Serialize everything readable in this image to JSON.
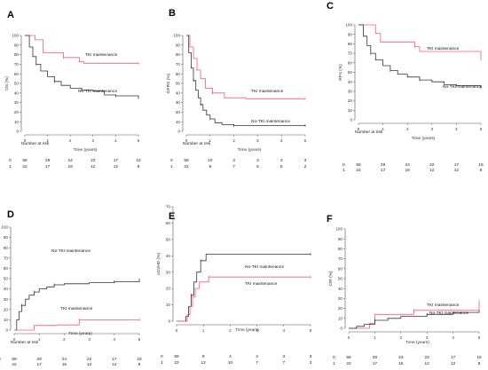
{
  "chart_data": [
    {
      "type": "line",
      "panel": "A",
      "ylabel": "OS (%)",
      "xlabel": "Time (years)",
      "xlim": [
        0,
        5
      ],
      "ylim": [
        0,
        100
      ],
      "xticks": [
        0,
        1,
        2,
        3,
        4,
        5
      ],
      "yticks": [
        0,
        10,
        20,
        30,
        40,
        50,
        60,
        70,
        80,
        90,
        100
      ],
      "series": [
        {
          "name": "TKI maintenance",
          "color": "#ff5a6e",
          "x": [
            0,
            0.45,
            0.8,
            1.7,
            2.4,
            2.6,
            5.0
          ],
          "y": [
            100,
            95.5,
            82,
            77,
            72.5,
            71,
            71
          ]
        },
        {
          "name": "No-TKI maintenance",
          "color": "#333333",
          "x": [
            0,
            0.2,
            0.35,
            0.5,
            0.7,
            1.0,
            1.3,
            1.6,
            2.0,
            2.5,
            3.0,
            3.5,
            4.0,
            5.0
          ],
          "y": [
            100,
            88,
            78,
            70,
            63,
            57,
            52,
            48,
            45,
            43,
            42,
            38,
            37,
            35
          ]
        }
      ],
      "risk_table": {
        "title": "Number at risk",
        "rows": [
          {
            "group": "0",
            "values": [
              "58",
              "29",
              "24",
              "22",
              "17",
              "15"
            ]
          },
          {
            "group": "1",
            "values": [
              "22",
              "17",
              "16",
              "12",
              "12",
              "8"
            ]
          }
        ]
      }
    },
    {
      "type": "line",
      "panel": "B",
      "ylabel": "GFRS (%)",
      "xlabel": "Time (years)",
      "xlim": [
        0,
        5
      ],
      "ylim": [
        0,
        100
      ],
      "xticks": [
        0,
        1,
        2,
        3,
        4,
        5
      ],
      "yticks": [
        0,
        10,
        20,
        30,
        40,
        50,
        60,
        70,
        80,
        90,
        100
      ],
      "series": [
        {
          "name": "TKI maintenance",
          "color": "#ff5a6e",
          "x": [
            0,
            0.15,
            0.3,
            0.45,
            0.6,
            0.8,
            1.1,
            1.6,
            2.5,
            5.0
          ],
          "y": [
            100,
            88,
            76,
            64,
            55,
            45,
            40,
            35,
            34,
            34
          ]
        },
        {
          "name": "No-TKI maintenance",
          "color": "#333333",
          "x": [
            0,
            0.1,
            0.2,
            0.3,
            0.4,
            0.5,
            0.6,
            0.7,
            0.85,
            1.0,
            1.2,
            1.5,
            2.0,
            3.0,
            5.0
          ],
          "y": [
            100,
            82,
            66,
            53,
            43,
            35,
            28,
            22,
            17,
            13,
            9,
            7,
            6,
            6,
            6
          ]
        }
      ],
      "risk_table": {
        "title": "Number at risk",
        "rows": [
          {
            "group": "0",
            "values": [
              "58",
              "10",
              "3",
              "3",
              "3",
              "3"
            ]
          },
          {
            "group": "1",
            "values": [
              "22",
              "9",
              "7",
              "5",
              "5",
              "2"
            ]
          }
        ]
      }
    },
    {
      "type": "line",
      "panel": "C",
      "ylabel": "RFS (%)",
      "xlabel": "Time (years)",
      "xlim": [
        0,
        5
      ],
      "ylim": [
        0,
        100
      ],
      "xticks": [
        0,
        1,
        2,
        3,
        4,
        5
      ],
      "yticks": [
        0,
        10,
        20,
        30,
        40,
        50,
        60,
        70,
        80,
        90,
        100
      ],
      "series": [
        {
          "name": "TKI maintenance",
          "color": "#ff5a6e",
          "x": [
            0,
            0.7,
            0.9,
            2.3,
            2.5,
            4.9,
            5.0
          ],
          "y": [
            100,
            91,
            82,
            77,
            72,
            72,
            64
          ]
        },
        {
          "name": "No-TKI maintenance",
          "color": "#333333",
          "x": [
            0,
            0.2,
            0.35,
            0.5,
            0.7,
            1.0,
            1.3,
            1.6,
            2.0,
            2.5,
            3.0,
            3.5,
            4.0,
            5.0
          ],
          "y": [
            100,
            88,
            78,
            70,
            63,
            57,
            52,
            48,
            45,
            42,
            40,
            37,
            36,
            34
          ]
        }
      ],
      "risk_table": {
        "title": "Number at risk",
        "rows": [
          {
            "group": "0",
            "values": [
              "58",
              "29",
              "24",
              "22",
              "17",
              "15"
            ]
          },
          {
            "group": "1",
            "values": [
              "22",
              "17",
              "16",
              "12",
              "12",
              "8"
            ]
          }
        ]
      }
    },
    {
      "type": "line",
      "panel": "D",
      "ylabel": "NRM (%)",
      "xlabel": "Time (years)",
      "xlim": [
        0,
        5
      ],
      "ylim": [
        0,
        100
      ],
      "xticks": [
        0,
        1,
        2,
        3,
        4,
        5
      ],
      "yticks": [
        0,
        10,
        20,
        30,
        40,
        50,
        60,
        70,
        80,
        90,
        100
      ],
      "series": [
        {
          "name": "No-TKI maintenance",
          "color": "#333333",
          "x": [
            0,
            0.1,
            0.2,
            0.3,
            0.45,
            0.6,
            0.8,
            1.0,
            1.3,
            1.6,
            2.0,
            3.0,
            4.0,
            4.9,
            5.0
          ],
          "y": [
            0,
            10,
            18,
            24,
            30,
            34,
            37,
            40,
            42,
            44,
            45,
            46,
            47,
            47,
            49
          ]
        },
        {
          "name": "TKI maintenance",
          "color": "#ff5a6e",
          "x": [
            0,
            0.8,
            1.7,
            2.6,
            5.0
          ],
          "y": [
            0,
            4.5,
            5,
            10,
            10
          ]
        }
      ],
      "risk_table": {
        "title": "Number at risk",
        "rows": [
          {
            "group": "0",
            "values": [
              "58",
              "29",
              "24",
              "22",
              "17",
              "15"
            ]
          },
          {
            "group": "1",
            "values": [
              "22",
              "17",
              "16",
              "12",
              "12",
              "8"
            ]
          }
        ]
      }
    },
    {
      "type": "line",
      "panel": "E",
      "ylabel": "cGVHD (%)",
      "xlabel": "Time (years)",
      "xlim": [
        0,
        5
      ],
      "ylim": [
        0,
        70
      ],
      "xticks": [
        0,
        1,
        2,
        3,
        4,
        5
      ],
      "yticks": [
        0,
        10,
        20,
        30,
        40,
        50,
        60,
        70
      ],
      "series": [
        {
          "name": "No-TKI maintenance",
          "color": "#333333",
          "x": [
            0,
            0.35,
            0.45,
            0.55,
            0.65,
            0.75,
            0.9,
            1.1,
            5.0
          ],
          "y": [
            0,
            3,
            9,
            16,
            24,
            30,
            37,
            41,
            41
          ]
        },
        {
          "name": "TKI maintenance",
          "color": "#ff5a6e",
          "x": [
            0,
            0.4,
            0.5,
            0.6,
            0.7,
            0.85,
            1.2,
            5.0
          ],
          "y": [
            0,
            4,
            9,
            15,
            20,
            24,
            27,
            27
          ]
        }
      ],
      "risk_table": {
        "title": "",
        "rows": [
          {
            "group": "0",
            "values": [
              "58",
              "9",
              "4",
              "4",
              "3",
              "3"
            ]
          },
          {
            "group": "1",
            "values": [
              "22",
              "12",
              "10",
              "7",
              "7",
              "3"
            ]
          }
        ]
      }
    },
    {
      "type": "line",
      "panel": "F",
      "ylabel": "CIR (%)",
      "xlabel": "Time (years)",
      "xlim": [
        0,
        5
      ],
      "ylim": [
        0,
        100
      ],
      "xticks": [
        0,
        1,
        2,
        3,
        4,
        5
      ],
      "yticks": [
        0,
        10,
        20,
        30,
        40,
        50,
        60,
        70,
        80,
        90,
        100
      ],
      "series": [
        {
          "name": "TKI maintenance",
          "color": "#ff5a6e",
          "x": [
            0,
            0.8,
            1.0,
            2.5,
            4.9,
            5.0
          ],
          "y": [
            0,
            5,
            14,
            18,
            18,
            27
          ]
        },
        {
          "name": "No-TKI maintenance",
          "color": "#333333",
          "x": [
            0,
            0.3,
            0.6,
            1.0,
            1.5,
            2.0,
            3.0,
            4.0,
            5.0
          ],
          "y": [
            0,
            2,
            4,
            8,
            10,
            12,
            14,
            16,
            17
          ]
        }
      ],
      "risk_table": {
        "title": "",
        "rows": [
          {
            "group": "0",
            "values": [
              "58",
              "29",
              "24",
              "22",
              "17",
              "15"
            ]
          },
          {
            "group": "1",
            "values": [
              "22",
              "17",
              "16",
              "12",
              "12",
              "8"
            ]
          }
        ]
      }
    }
  ]
}
